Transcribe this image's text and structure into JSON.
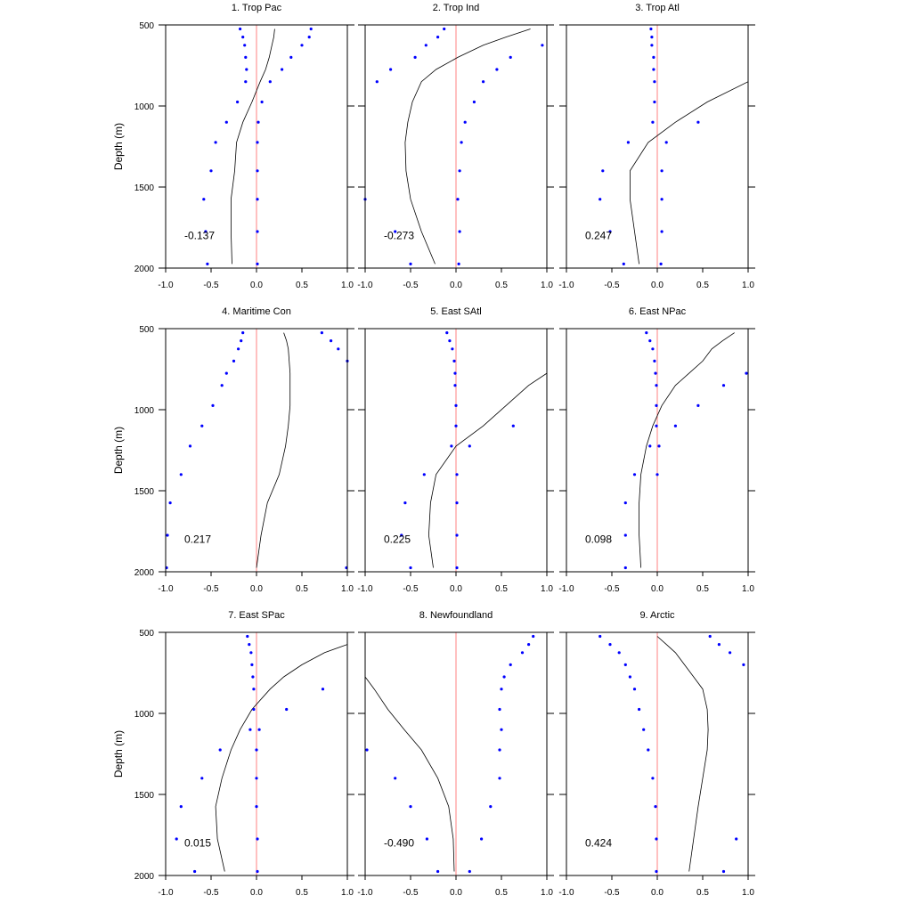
{
  "figure": {
    "ylabel": "Depth (m)",
    "y_ticks": [
      500,
      1000,
      1500,
      2000
    ],
    "x_ticks": [
      -1.0,
      -0.5,
      0.0,
      0.5,
      1.0
    ],
    "x_tick_labels": [
      "-1.0",
      "-0.5",
      "0.0",
      "0.5",
      "1.0"
    ],
    "colors": {
      "zero_line": "#ff8080",
      "dots": "#0000ff",
      "line": "#000000",
      "frame": "#000000"
    }
  },
  "chart_data": [
    {
      "type": "line",
      "title": "1. Trop Pac",
      "correlation": "-0.137",
      "xlim": [
        -1,
        1
      ],
      "ylim": [
        2000,
        500
      ],
      "y_reversed": true,
      "depths": [
        525,
        575,
        625,
        700,
        775,
        850,
        975,
        1100,
        1225,
        1400,
        1575,
        1775,
        1975
      ],
      "line_x": [
        0.2,
        0.19,
        0.17,
        0.14,
        0.1,
        0.04,
        -0.05,
        -0.15,
        -0.22,
        -0.24,
        -0.28,
        -0.28,
        -0.27
      ],
      "dots_left": [
        -0.18,
        -0.15,
        -0.13,
        -0.12,
        -0.11,
        -0.12,
        -0.21,
        -0.33,
        -0.45,
        -0.5,
        -0.58,
        -0.56,
        -0.54
      ],
      "dots_right": [
        0.6,
        0.58,
        0.5,
        0.38,
        0.28,
        0.15,
        0.06,
        0.02,
        0.01,
        0.01,
        0.01,
        0.01,
        0.01
      ]
    },
    {
      "type": "line",
      "title": "2. Trop Ind",
      "correlation": "-0.273",
      "xlim": [
        -1,
        1
      ],
      "ylim": [
        2000,
        500
      ],
      "y_reversed": true,
      "depths": [
        525,
        575,
        625,
        700,
        775,
        850,
        975,
        1100,
        1225,
        1400,
        1575,
        1775,
        1975
      ],
      "line_x": [
        0.82,
        0.55,
        0.3,
        0.02,
        -0.22,
        -0.38,
        -0.48,
        -0.53,
        -0.56,
        -0.55,
        -0.5,
        -0.38,
        -0.23
      ],
      "dots_left": [
        -0.13,
        -0.2,
        -0.33,
        -0.45,
        -0.72,
        -0.87,
        null,
        null,
        null,
        null,
        -1.0,
        -0.67,
        -0.5
      ],
      "dots_right": [
        null,
        null,
        0.95,
        0.6,
        0.45,
        0.3,
        0.2,
        0.1,
        0.06,
        0.04,
        0.02,
        0.04,
        0.03
      ]
    },
    {
      "type": "line",
      "title": "3. Trop Atl",
      "correlation": "0.247",
      "xlim": [
        -1,
        1
      ],
      "ylim": [
        2000,
        500
      ],
      "y_reversed": true,
      "depths": [
        525,
        575,
        625,
        700,
        775,
        850,
        975,
        1100,
        1225,
        1400,
        1575,
        1775,
        1975
      ],
      "line_x": [
        null,
        null,
        null,
        null,
        null,
        1.0,
        0.55,
        0.2,
        -0.1,
        -0.3,
        -0.3,
        -0.25,
        -0.2
      ],
      "dots_left": [
        -0.07,
        -0.06,
        -0.06,
        -0.04,
        -0.04,
        -0.03,
        -0.03,
        -0.05,
        -0.32,
        -0.6,
        -0.63,
        -0.52,
        -0.37
      ],
      "dots_right": [
        null,
        null,
        null,
        null,
        null,
        null,
        null,
        0.45,
        0.1,
        0.05,
        0.05,
        0.05,
        0.04
      ]
    },
    {
      "type": "line",
      "title": "4. Maritime Con",
      "correlation": "0.217",
      "xlim": [
        -1,
        1
      ],
      "ylim": [
        2000,
        500
      ],
      "y_reversed": true,
      "depths": [
        525,
        575,
        625,
        700,
        775,
        850,
        975,
        1100,
        1225,
        1400,
        1575,
        1775,
        1975
      ],
      "line_x": [
        0.3,
        0.33,
        0.35,
        0.36,
        0.37,
        0.37,
        0.37,
        0.35,
        0.32,
        0.25,
        0.12,
        0.05,
        0.0
      ],
      "dots_left": [
        -0.15,
        -0.17,
        -0.2,
        -0.25,
        -0.33,
        -0.38,
        -0.48,
        -0.6,
        -0.73,
        -0.83,
        -0.95,
        -0.98,
        -0.99
      ],
      "dots_right": [
        0.72,
        0.82,
        0.9,
        1.0,
        null,
        null,
        null,
        null,
        null,
        null,
        null,
        null,
        0.99
      ]
    },
    {
      "type": "line",
      "title": "5. East SAtl",
      "correlation": "0.225",
      "xlim": [
        -1,
        1
      ],
      "ylim": [
        2000,
        500
      ],
      "y_reversed": true,
      "depths": [
        525,
        575,
        625,
        700,
        775,
        850,
        975,
        1100,
        1225,
        1400,
        1575,
        1775,
        1975
      ],
      "line_x": [
        null,
        null,
        null,
        null,
        1.0,
        0.8,
        0.55,
        0.3,
        0.0,
        -0.22,
        -0.28,
        -0.3,
        -0.25
      ],
      "dots_left": [
        -0.1,
        -0.07,
        -0.04,
        -0.02,
        -0.01,
        -0.01,
        0.0,
        0.0,
        -0.05,
        -0.35,
        -0.56,
        -0.6,
        -0.5
      ],
      "dots_right": [
        null,
        null,
        null,
        null,
        null,
        null,
        null,
        0.63,
        0.15,
        0.01,
        0.01,
        0.01,
        0.01
      ]
    },
    {
      "type": "line",
      "title": "6. East NPac",
      "correlation": "0.098",
      "xlim": [
        -1,
        1
      ],
      "ylim": [
        2000,
        500
      ],
      "y_reversed": true,
      "depths": [
        525,
        575,
        625,
        700,
        775,
        850,
        975,
        1100,
        1225,
        1400,
        1575,
        1775,
        1975
      ],
      "line_x": [
        0.85,
        0.72,
        0.6,
        0.5,
        0.35,
        0.2,
        0.05,
        -0.05,
        -0.12,
        -0.18,
        -0.2,
        -0.2,
        -0.18
      ],
      "dots_left": [
        -0.12,
        -0.08,
        -0.05,
        -0.03,
        -0.02,
        -0.01,
        -0.01,
        -0.01,
        -0.08,
        -0.25,
        -0.35,
        -0.35,
        -0.35
      ],
      "dots_right": [
        null,
        null,
        null,
        null,
        0.98,
        0.73,
        0.45,
        0.2,
        0.02,
        0.0,
        null,
        null,
        null
      ]
    },
    {
      "type": "line",
      "title": "7. East SPac",
      "correlation": "0.015",
      "xlim": [
        -1,
        1
      ],
      "ylim": [
        2000,
        500
      ],
      "y_reversed": true,
      "depths": [
        525,
        575,
        625,
        700,
        775,
        850,
        975,
        1100,
        1225,
        1400,
        1575,
        1775,
        1975
      ],
      "line_x": [
        null,
        1.0,
        0.75,
        0.5,
        0.3,
        0.15,
        -0.05,
        -0.18,
        -0.28,
        -0.38,
        -0.45,
        -0.43,
        -0.35
      ],
      "dots_left": [
        -0.1,
        -0.08,
        -0.06,
        -0.05,
        -0.04,
        -0.03,
        -0.03,
        -0.07,
        -0.4,
        -0.6,
        -0.83,
        -0.88,
        -0.68
      ],
      "dots_right": [
        null,
        null,
        null,
        null,
        null,
        0.73,
        0.33,
        0.03,
        0.0,
        0.0,
        0.0,
        0.01,
        0.01
      ]
    },
    {
      "type": "line",
      "title": "8. Newfoundland",
      "correlation": "-0.490",
      "xlim": [
        -1,
        1
      ],
      "ylim": [
        2000,
        500
      ],
      "y_reversed": true,
      "depths": [
        525,
        575,
        625,
        700,
        775,
        850,
        975,
        1100,
        1225,
        1400,
        1575,
        1775,
        1975
      ],
      "line_x": [
        null,
        null,
        null,
        null,
        -1.0,
        -0.9,
        -0.75,
        -0.57,
        -0.38,
        -0.2,
        -0.08,
        -0.03,
        -0.02
      ],
      "dots_left": [
        null,
        null,
        null,
        null,
        null,
        null,
        null,
        null,
        -0.98,
        -0.67,
        -0.5,
        -0.32,
        -0.2
      ],
      "dots_right": [
        0.85,
        0.8,
        0.73,
        0.6,
        0.53,
        0.5,
        0.48,
        0.5,
        0.48,
        0.48,
        0.38,
        0.28,
        0.15
      ]
    },
    {
      "type": "line",
      "title": "9. Arctic",
      "correlation": "0.424",
      "xlim": [
        -1,
        1
      ],
      "ylim": [
        2000,
        500
      ],
      "y_reversed": true,
      "depths": [
        525,
        575,
        625,
        700,
        775,
        850,
        975,
        1100,
        1225,
        1400,
        1575,
        1775,
        1975
      ],
      "line_x": [
        0.0,
        0.1,
        0.2,
        0.3,
        0.4,
        0.5,
        0.55,
        0.56,
        0.55,
        0.5,
        0.45,
        0.4,
        0.35
      ],
      "dots_left": [
        -0.63,
        -0.52,
        -0.42,
        -0.35,
        -0.3,
        -0.25,
        -0.2,
        -0.15,
        -0.1,
        -0.05,
        -0.02,
        -0.01,
        -0.01
      ],
      "dots_right": [
        0.58,
        0.68,
        0.8,
        0.95,
        null,
        null,
        null,
        null,
        null,
        null,
        null,
        0.87,
        0.73
      ]
    }
  ]
}
